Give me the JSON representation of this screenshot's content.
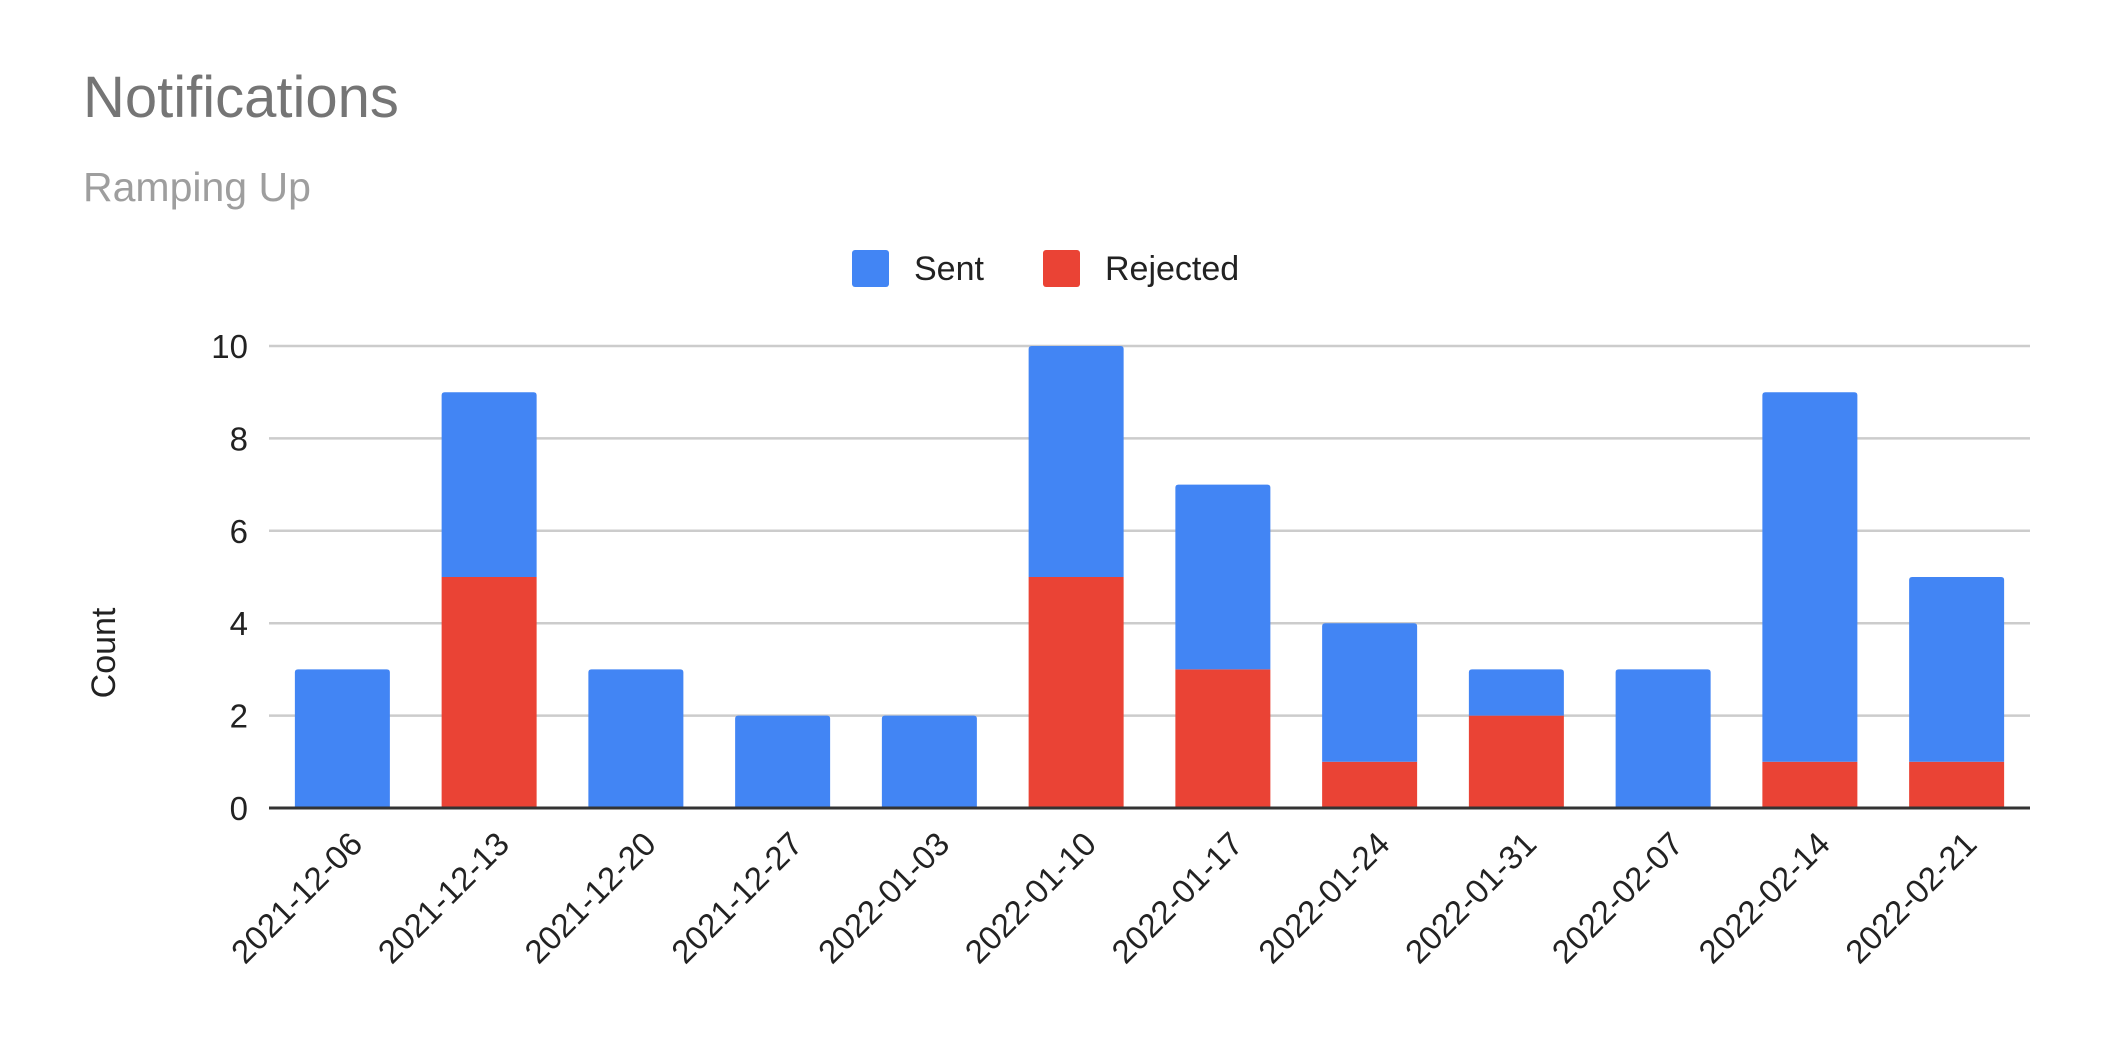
{
  "title": "Notifications",
  "subtitle": "Ramping Up",
  "chart_data": {
    "type": "bar",
    "stacked": true,
    "title": "Notifications",
    "subtitle": "Ramping Up",
    "xlabel": "",
    "ylabel": "Count",
    "ylim": [
      0,
      10
    ],
    "yticks": [
      0,
      2,
      4,
      6,
      8,
      10
    ],
    "grid": true,
    "legend_position": "top",
    "categories": [
      "2021-12-06",
      "2021-12-13",
      "2021-12-20",
      "2021-12-27",
      "2022-01-03",
      "2022-01-10",
      "2022-01-17",
      "2022-01-24",
      "2022-01-31",
      "2022-02-07",
      "2022-02-14",
      "2022-02-21"
    ],
    "series": [
      {
        "name": "Rejected",
        "color": "#ea4335",
        "values": [
          0,
          5,
          0,
          0,
          0,
          5,
          3,
          1,
          2,
          0,
          1,
          1
        ]
      },
      {
        "name": "Sent",
        "color": "#4285f4",
        "values": [
          3,
          4,
          3,
          2,
          2,
          5,
          4,
          3,
          1,
          3,
          8,
          4
        ]
      }
    ],
    "legend_order": [
      "Sent",
      "Rejected"
    ]
  }
}
